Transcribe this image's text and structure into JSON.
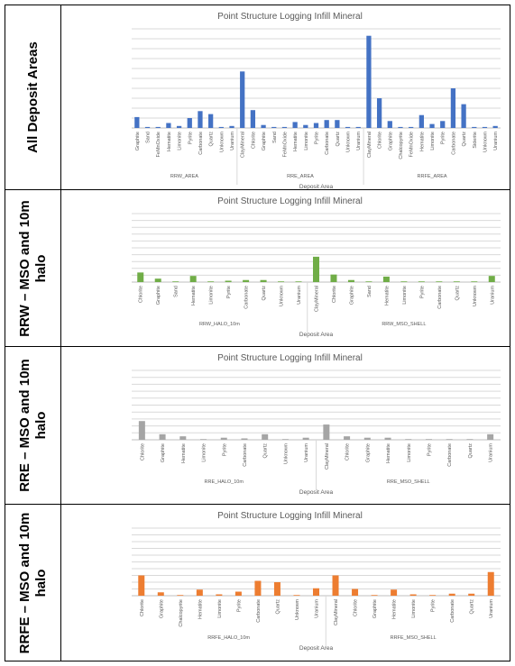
{
  "rows": [
    {
      "label_lines": [
        "All Deposit Areas"
      ]
    },
    {
      "label_lines": [
        "RRW – MSO and 10m",
        "halo"
      ]
    },
    {
      "label_lines": [
        "RRE – MSO and 10m",
        "halo"
      ]
    },
    {
      "label_lines": [
        "RRFE – MSO and 10m",
        "halo"
      ]
    }
  ],
  "chart_data": [
    {
      "type": "bar",
      "title": "Point Structure Logging Infill Mineral",
      "xlabel": "Deposit Area",
      "color": "#4472c4",
      "ylim": [
        0,
        100
      ],
      "groups": [
        {
          "name": "RRW_AREA",
          "categories": [
            "Graphite",
            "Sand",
            "FeMnOxide",
            "Hematite",
            "Limonite",
            "Pyrite",
            "Carbonate",
            "Quartz",
            "Unknown",
            "Uranium"
          ],
          "values": [
            11,
            1,
            1,
            5,
            2,
            10,
            17,
            14,
            1,
            2
          ]
        },
        {
          "name": "RRE_AREA",
          "categories": [
            "ClayMineral",
            "Chlorite",
            "Graphite",
            "Sand",
            "FeMnOxide",
            "Hematite",
            "Limonite",
            "Pyrite",
            "Carbonate",
            "Quartz",
            "Unknown",
            "Uranium"
          ],
          "values": [
            57,
            18,
            3,
            1,
            1,
            6,
            3,
            5,
            8,
            8,
            1,
            1
          ]
        },
        {
          "name": "RRFE_AREA",
          "categories": [
            "ClayMineral",
            "Chlorite",
            "Graphite",
            "Chalcopyrite",
            "FeMnOxide",
            "Hematite",
            "Limonite",
            "Pyrite",
            "Carbonate",
            "Quartz",
            "Siderite",
            "Unknown",
            "Uranium"
          ],
          "values": [
            93,
            30,
            7,
            1,
            1,
            13,
            4,
            7,
            40,
            24,
            1,
            1,
            2
          ]
        }
      ]
    },
    {
      "type": "bar",
      "title": "Point Structure Logging Infill Mineral",
      "xlabel": "Deposit Area",
      "color": "#70ad47",
      "ylim": [
        0,
        100
      ],
      "groups": [
        {
          "name": "RRW_HALO_10m",
          "categories": [
            "Chlorite",
            "Graphite",
            "Sand",
            "Hematite",
            "Limonite",
            "Pyrite",
            "Carbonate",
            "Quartz",
            "Unknown",
            "Uranium"
          ],
          "values": [
            14,
            5,
            1,
            9,
            1,
            2,
            3,
            3,
            1,
            1
          ]
        },
        {
          "name": "RRW_MSO_SHELL",
          "categories": [
            "ClayMineral",
            "Chlorite",
            "Graphite",
            "Sand",
            "Hematite",
            "Limonite",
            "Pyrite",
            "Carbonate",
            "Quartz",
            "Unknown",
            "Uranium"
          ],
          "values": [
            37,
            11,
            3,
            1,
            8,
            1,
            1,
            1,
            1,
            1,
            9
          ]
        }
      ]
    },
    {
      "type": "bar",
      "title": "Point Structure Logging Infill Mineral",
      "xlabel": "Deposit Area",
      "color": "#a5a5a5",
      "ylim": [
        0,
        100
      ],
      "groups": [
        {
          "name": "RRE_HALO_10m",
          "categories": [
            "Chlorite",
            "Graphite",
            "Hematite",
            "Limonite",
            "Pyrite",
            "Carbonate",
            "Quartz",
            "Unknown",
            "Uranium"
          ],
          "values": [
            27,
            8,
            5,
            1,
            3,
            2,
            8,
            1,
            3
          ]
        },
        {
          "name": "RRE_MSO_SHELL",
          "categories": [
            "ClayMineral",
            "Chlorite",
            "Graphite",
            "Hematite",
            "Limonite",
            "Pyrite",
            "Carbonate",
            "Quartz",
            "Uranium"
          ],
          "values": [
            22,
            5,
            3,
            3,
            1,
            1,
            1,
            1,
            8
          ]
        }
      ]
    },
    {
      "type": "bar",
      "title": "Point Structure Logging Infill Mineral",
      "xlabel": "Deposit Area",
      "color": "#ed7d31",
      "ylim": [
        0,
        100
      ],
      "groups": [
        {
          "name": "RRFE_HALO_10m",
          "categories": [
            "Chlorite",
            "Graphite",
            "Chalcopyrite",
            "Hematite",
            "Limonite",
            "Pyrite",
            "Carbonate",
            "Quartz",
            "Unknown",
            "Uranium"
          ],
          "values": [
            30,
            5,
            1,
            9,
            2,
            6,
            22,
            20,
            1,
            11
          ]
        },
        {
          "name": "RRFE_MSO_SHELL",
          "categories": [
            "ClayMineral",
            "Chlorite",
            "Graphite",
            "Hematite",
            "Limonite",
            "Pyrite",
            "Carbonate",
            "Quartz",
            "Uranium"
          ],
          "values": [
            30,
            10,
            1,
            9,
            2,
            1,
            3,
            3,
            35
          ]
        }
      ]
    }
  ]
}
